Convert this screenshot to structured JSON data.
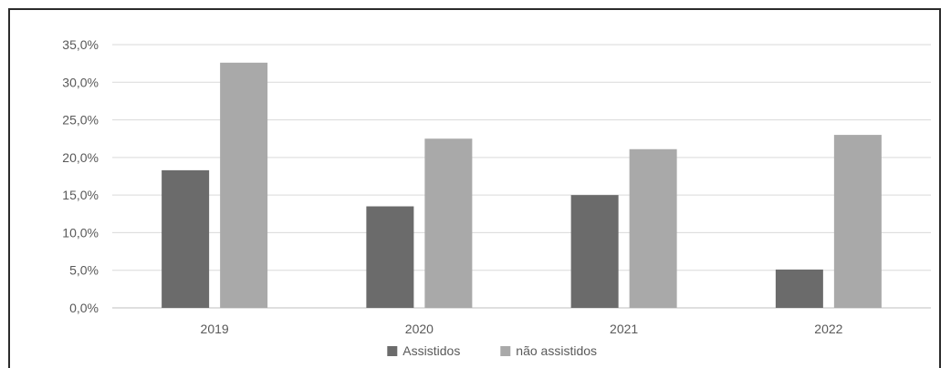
{
  "chart_data": {
    "type": "bar",
    "title": "",
    "xlabel": "",
    "ylabel": "",
    "categories": [
      "2019",
      "2020",
      "2021",
      "2022"
    ],
    "series": [
      {
        "name": "Assistidos",
        "values": [
          18.3,
          13.5,
          15.0,
          5.1
        ],
        "color": "#6b6b6b"
      },
      {
        "name": "não assistidos",
        "values": [
          32.6,
          22.5,
          21.1,
          23.0
        ],
        "color": "#a9a9a9"
      }
    ],
    "ylim": [
      0,
      35
    ],
    "yticks": [
      0,
      5,
      10,
      15,
      20,
      25,
      30,
      35
    ],
    "ytick_labels": [
      "0,0%",
      "5,0%",
      "10,0%",
      "15,0%",
      "20,0%",
      "25,0%",
      "30,0%",
      "35,0%"
    ],
    "grid": true,
    "legend_position": "bottom",
    "gridline_color": "#d9d9d9",
    "axis_color": "#bfbfbf"
  }
}
